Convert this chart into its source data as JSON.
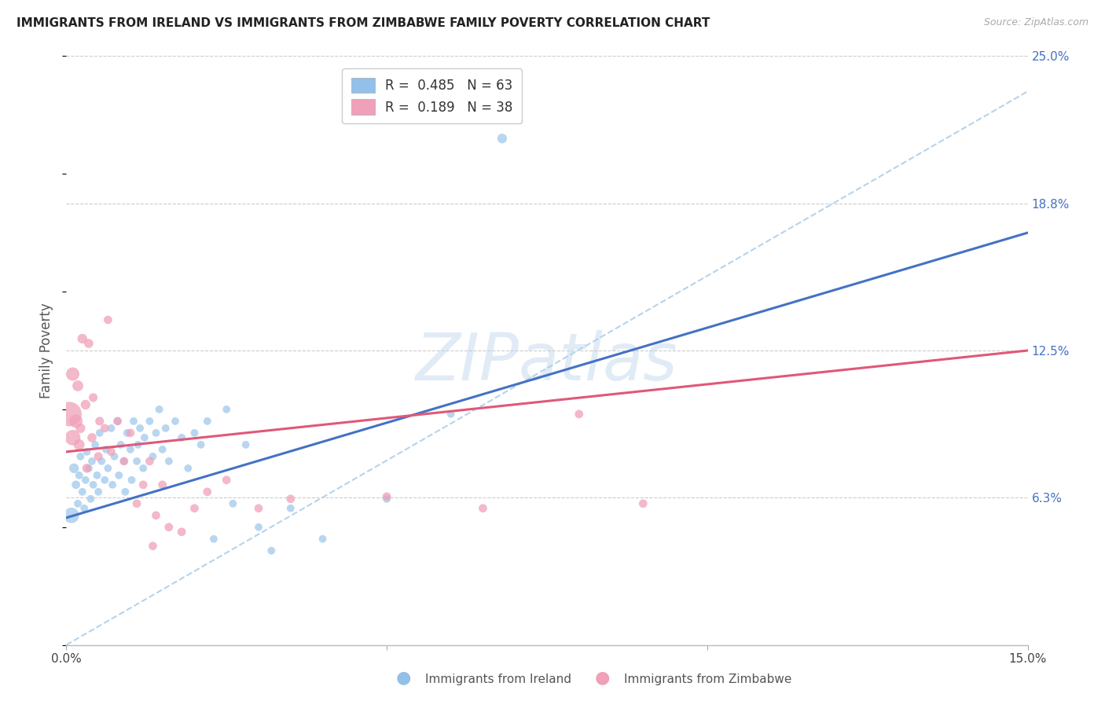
{
  "title": "IMMIGRANTS FROM IRELAND VS IMMIGRANTS FROM ZIMBABWE FAMILY POVERTY CORRELATION CHART",
  "source": "Source: ZipAtlas.com",
  "ylabel": "Family Poverty",
  "xlim": [
    0.0,
    0.15
  ],
  "ylim": [
    0.0,
    0.25
  ],
  "watermark": "ZIPatlas",
  "ireland_color": "#92C0E8",
  "zimbabwe_color": "#F0A0B8",
  "ireland_line_color": "#4472C4",
  "zimbabwe_line_color": "#E05878",
  "dashed_line_color": "#AACCE8",
  "background_color": "#FFFFFF",
  "grid_color": "#CCCCCC",
  "ireland_line": [
    0.0,
    0.054,
    0.15,
    0.175
  ],
  "zimbabwe_line": [
    0.0,
    0.082,
    0.15,
    0.125
  ],
  "dashed_line": [
    0.0,
    0.0,
    0.15,
    0.235
  ],
  "ireland_points": [
    [
      0.0008,
      0.055,
      200
    ],
    [
      0.0012,
      0.075,
      80
    ],
    [
      0.0015,
      0.068,
      60
    ],
    [
      0.0018,
      0.06,
      50
    ],
    [
      0.002,
      0.072,
      50
    ],
    [
      0.0022,
      0.08,
      50
    ],
    [
      0.0025,
      0.065,
      50
    ],
    [
      0.0028,
      0.058,
      50
    ],
    [
      0.003,
      0.07,
      50
    ],
    [
      0.0032,
      0.082,
      50
    ],
    [
      0.0035,
      0.075,
      50
    ],
    [
      0.0038,
      0.062,
      50
    ],
    [
      0.004,
      0.078,
      50
    ],
    [
      0.0042,
      0.068,
      50
    ],
    [
      0.0045,
      0.085,
      50
    ],
    [
      0.0048,
      0.072,
      50
    ],
    [
      0.005,
      0.065,
      50
    ],
    [
      0.0052,
      0.09,
      50
    ],
    [
      0.0055,
      0.078,
      50
    ],
    [
      0.006,
      0.07,
      50
    ],
    [
      0.0062,
      0.083,
      50
    ],
    [
      0.0065,
      0.075,
      50
    ],
    [
      0.007,
      0.092,
      50
    ],
    [
      0.0072,
      0.068,
      50
    ],
    [
      0.0075,
      0.08,
      50
    ],
    [
      0.008,
      0.095,
      50
    ],
    [
      0.0082,
      0.072,
      50
    ],
    [
      0.0085,
      0.085,
      50
    ],
    [
      0.009,
      0.078,
      50
    ],
    [
      0.0092,
      0.065,
      50
    ],
    [
      0.0095,
      0.09,
      50
    ],
    [
      0.01,
      0.083,
      50
    ],
    [
      0.0102,
      0.07,
      50
    ],
    [
      0.0105,
      0.095,
      50
    ],
    [
      0.011,
      0.078,
      50
    ],
    [
      0.0112,
      0.085,
      50
    ],
    [
      0.0115,
      0.092,
      50
    ],
    [
      0.012,
      0.075,
      50
    ],
    [
      0.0122,
      0.088,
      50
    ],
    [
      0.013,
      0.095,
      50
    ],
    [
      0.0135,
      0.08,
      50
    ],
    [
      0.014,
      0.09,
      50
    ],
    [
      0.0145,
      0.1,
      50
    ],
    [
      0.015,
      0.083,
      50
    ],
    [
      0.0155,
      0.092,
      50
    ],
    [
      0.016,
      0.078,
      50
    ],
    [
      0.017,
      0.095,
      50
    ],
    [
      0.018,
      0.088,
      50
    ],
    [
      0.019,
      0.075,
      50
    ],
    [
      0.02,
      0.09,
      50
    ],
    [
      0.021,
      0.085,
      50
    ],
    [
      0.022,
      0.095,
      50
    ],
    [
      0.023,
      0.045,
      50
    ],
    [
      0.025,
      0.1,
      50
    ],
    [
      0.026,
      0.06,
      50
    ],
    [
      0.028,
      0.085,
      50
    ],
    [
      0.03,
      0.05,
      50
    ],
    [
      0.032,
      0.04,
      50
    ],
    [
      0.035,
      0.058,
      50
    ],
    [
      0.04,
      0.045,
      50
    ],
    [
      0.05,
      0.062,
      50
    ],
    [
      0.06,
      0.098,
      50
    ],
    [
      0.068,
      0.215,
      80
    ]
  ],
  "zimbabwe_points": [
    [
      0.0005,
      0.098,
      500
    ],
    [
      0.001,
      0.088,
      200
    ],
    [
      0.001,
      0.115,
      150
    ],
    [
      0.0015,
      0.095,
      150
    ],
    [
      0.0018,
      0.11,
      100
    ],
    [
      0.002,
      0.085,
      100
    ],
    [
      0.0022,
      0.092,
      80
    ],
    [
      0.0025,
      0.13,
      80
    ],
    [
      0.003,
      0.102,
      80
    ],
    [
      0.0032,
      0.075,
      70
    ],
    [
      0.0035,
      0.128,
      70
    ],
    [
      0.004,
      0.088,
      70
    ],
    [
      0.0042,
      0.105,
      65
    ],
    [
      0.005,
      0.08,
      65
    ],
    [
      0.0052,
      0.095,
      65
    ],
    [
      0.006,
      0.092,
      60
    ],
    [
      0.0065,
      0.138,
      60
    ],
    [
      0.007,
      0.082,
      60
    ],
    [
      0.008,
      0.095,
      60
    ],
    [
      0.009,
      0.078,
      60
    ],
    [
      0.01,
      0.09,
      60
    ],
    [
      0.011,
      0.06,
      60
    ],
    [
      0.012,
      0.068,
      60
    ],
    [
      0.013,
      0.078,
      60
    ],
    [
      0.0135,
      0.042,
      60
    ],
    [
      0.014,
      0.055,
      60
    ],
    [
      0.015,
      0.068,
      60
    ],
    [
      0.016,
      0.05,
      60
    ],
    [
      0.018,
      0.048,
      60
    ],
    [
      0.02,
      0.058,
      60
    ],
    [
      0.022,
      0.065,
      60
    ],
    [
      0.025,
      0.07,
      60
    ],
    [
      0.03,
      0.058,
      60
    ],
    [
      0.035,
      0.062,
      60
    ],
    [
      0.05,
      0.063,
      60
    ],
    [
      0.065,
      0.058,
      60
    ],
    [
      0.08,
      0.098,
      60
    ],
    [
      0.09,
      0.06,
      60
    ]
  ]
}
